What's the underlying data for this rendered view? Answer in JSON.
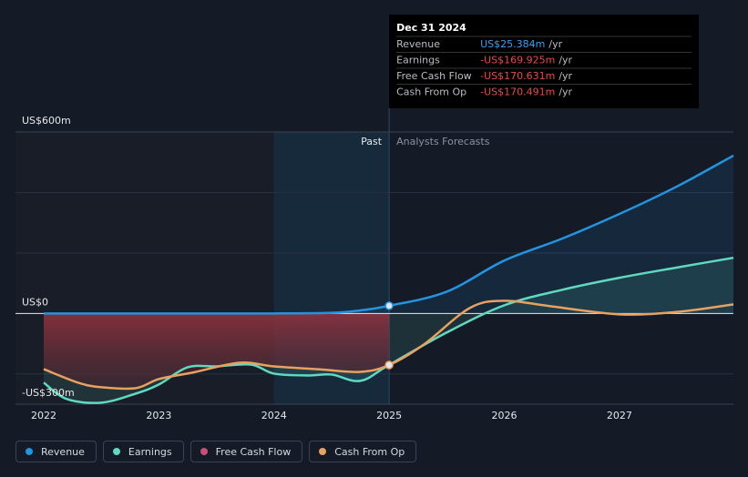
{
  "chart_data": {
    "type": "line",
    "xlim": [
      2021.755,
      2027.99
    ],
    "xticks": [
      2022,
      2023,
      2024,
      2025,
      2026,
      2027
    ],
    "ylim": [
      -300,
      600
    ],
    "yticks": [
      {
        "value": 600,
        "label": "US$600m"
      },
      {
        "value": 0,
        "label": "US$0"
      },
      {
        "value": -300,
        "label": "-US$300m"
      }
    ],
    "minor_gridlines": [
      400,
      200,
      -200
    ],
    "past_range": [
      2024,
      2025
    ],
    "past_label": "Past",
    "forecast_label": "Analysts Forecasts",
    "series": [
      {
        "name": "Revenue",
        "color": "#2394df",
        "fill": true,
        "x": [
          2022,
          2023,
          2024,
          2024.5,
          2024.75,
          2025,
          2025.5,
          2026,
          2026.5,
          2027,
          2027.5,
          2027.99
        ],
        "values": [
          0,
          0,
          0,
          2,
          10,
          25.384,
          72,
          175,
          247,
          329,
          420,
          522
        ]
      },
      {
        "name": "Earnings",
        "color": "#5fd9c0",
        "fill": true,
        "x": [
          2022,
          2022.2,
          2022.5,
          2022.8,
          2023,
          2023.25,
          2023.5,
          2023.8,
          2024,
          2024.3,
          2024.5,
          2024.75,
          2025,
          2025.5,
          2026,
          2026.5,
          2027,
          2027.5,
          2027.99
        ],
        "values": [
          -229,
          -283,
          -295,
          -265,
          -235,
          -178,
          -175,
          -169,
          -199,
          -205,
          -202,
          -223,
          -169.925,
          -63,
          27,
          78,
          118,
          152,
          184
        ]
      },
      {
        "name": "Free Cash Flow",
        "color": "#c7507a",
        "fill": true,
        "fill_color": "#9b2f3c",
        "x": [
          2022,
          2022.3,
          2022.5,
          2022.8,
          2023,
          2023.3,
          2023.7,
          2024,
          2024.4,
          2024.75,
          2025
        ],
        "values": [
          -184,
          -229,
          -244,
          -247,
          -217,
          -195,
          -163,
          -175,
          -185,
          -193,
          -170.631
        ]
      },
      {
        "name": "Cash From Op",
        "color": "#e9a15f",
        "fill": false,
        "x": [
          2022,
          2022.3,
          2022.5,
          2022.8,
          2023,
          2023.3,
          2023.7,
          2024,
          2024.4,
          2024.75,
          2025,
          2025.3,
          2025.7,
          2026,
          2026.4,
          2027,
          2027.5,
          2027.99
        ],
        "values": [
          -184,
          -229,
          -244,
          -247,
          -217,
          -195,
          -163,
          -175,
          -185,
          -193,
          -170.491,
          -103,
          18,
          42,
          24,
          -3,
          5,
          30
        ]
      }
    ],
    "tooltip": {
      "title": "Dec 31 2024",
      "rows": [
        {
          "label": "Revenue",
          "value": "US$25.384m",
          "unit": "/yr",
          "color": "#3aa0f0"
        },
        {
          "label": "Earnings",
          "value": "-US$169.925m",
          "unit": "/yr",
          "color": "#e84a4a"
        },
        {
          "label": "Free Cash Flow",
          "value": "-US$170.631m",
          "unit": "/yr",
          "color": "#e84a4a"
        },
        {
          "label": "Cash From Op",
          "value": "-US$170.491m",
          "unit": "/yr",
          "color": "#e84a4a"
        }
      ]
    }
  }
}
